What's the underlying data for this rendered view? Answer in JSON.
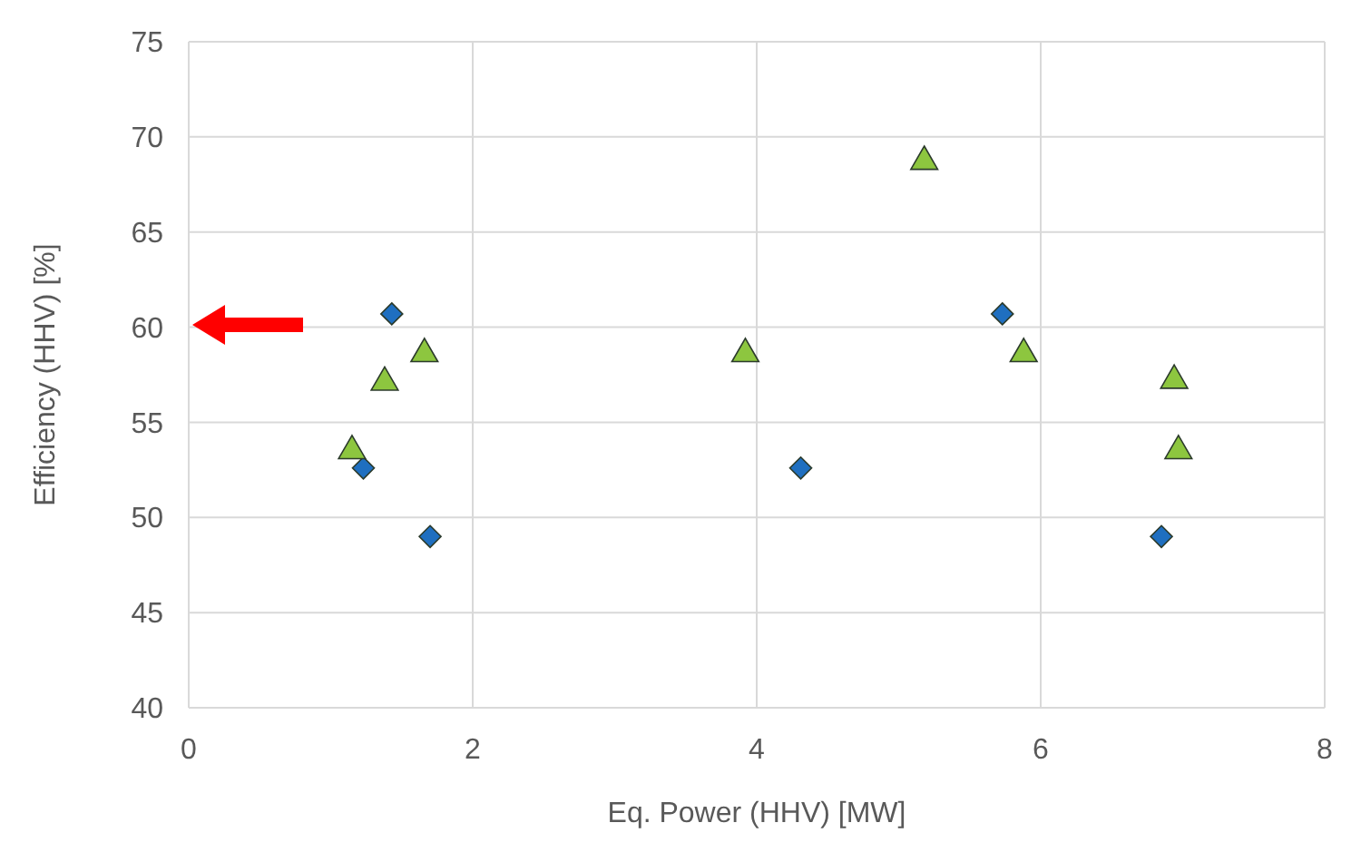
{
  "chart_data": {
    "type": "scatter",
    "xlabel": "Eq. Power (HHV) [MW]",
    "ylabel": "Efficiency (HHV) [%]",
    "xlim": [
      0,
      8
    ],
    "xticks": [
      0,
      2,
      4,
      6,
      8
    ],
    "ylim": [
      40,
      75
    ],
    "yticks": [
      40,
      45,
      50,
      55,
      60,
      65,
      70,
      75
    ],
    "grid": true,
    "series": [
      {
        "color": "#1f6fc0",
        "marker": "diamond",
        "x": [
          1.43,
          1.23,
          1.7,
          4.31,
          5.73,
          6.85
        ],
        "values": [
          60.7,
          52.6,
          49.0,
          52.6,
          60.7,
          49.0
        ]
      },
      {
        "color": "#8dc63f",
        "marker": "triangle",
        "x": [
          1.15,
          1.38,
          1.66,
          3.92,
          5.18,
          5.88,
          6.94,
          6.97
        ],
        "values": [
          53.5,
          57.1,
          58.6,
          58.6,
          68.7,
          58.6,
          57.2,
          53.5
        ]
      }
    ]
  }
}
